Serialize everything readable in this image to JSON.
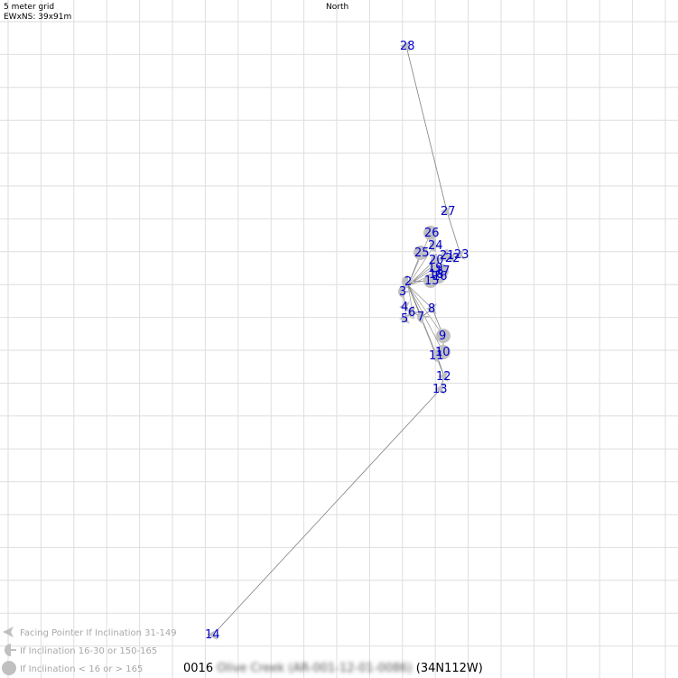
{
  "header": {
    "grid_label": "5 meter grid",
    "extent_label": "EWxNS: 39x91m",
    "north_label": "North"
  },
  "legend": [
    "Facing Pointer If Inclination 31-149",
    "If Inclination 16-30 or 150-165",
    "If Inclination < 16 or > 165"
  ],
  "footer": {
    "id": "0016",
    "site_name": "Olive Creek (AR-001-12-01-0086)",
    "zone": "(34N112W)"
  },
  "colors": {
    "grid": "#dedede",
    "line": "#808080",
    "marker": "#c0c0c0",
    "label": "#0000cc",
    "legend_text": "#a8a8a8"
  },
  "stations": [
    {
      "id": "2",
      "symbol": "half"
    },
    {
      "id": "3",
      "symbol": "half"
    },
    {
      "id": "4",
      "symbol": "pointer"
    },
    {
      "id": "5",
      "symbol": "pointer"
    },
    {
      "id": "6",
      "symbol": "half"
    },
    {
      "id": "7",
      "symbol": "half"
    },
    {
      "id": "8",
      "symbol": "pointer"
    },
    {
      "id": "9",
      "symbol": "circle"
    },
    {
      "id": "10",
      "symbol": "circle"
    },
    {
      "id": "11",
      "symbol": "half"
    },
    {
      "id": "12",
      "symbol": "pointer"
    },
    {
      "id": "13",
      "symbol": "pointer"
    },
    {
      "id": "14",
      "symbol": "pointer"
    },
    {
      "id": "15",
      "symbol": "circle"
    },
    {
      "id": "16",
      "symbol": "circle"
    },
    {
      "id": "17",
      "symbol": "circle"
    },
    {
      "id": "18",
      "symbol": "half"
    },
    {
      "id": "19",
      "symbol": "half"
    },
    {
      "id": "20",
      "symbol": "half"
    },
    {
      "id": "21",
      "symbol": "half"
    },
    {
      "id": "22",
      "symbol": "pointer"
    },
    {
      "id": "23",
      "symbol": "pointer"
    },
    {
      "id": "24",
      "symbol": "half"
    },
    {
      "id": "25",
      "symbol": "circle"
    },
    {
      "id": "26",
      "symbol": "circle"
    },
    {
      "id": "27",
      "symbol": "pointer"
    },
    {
      "id": "28",
      "symbol": "pointer"
    }
  ]
}
